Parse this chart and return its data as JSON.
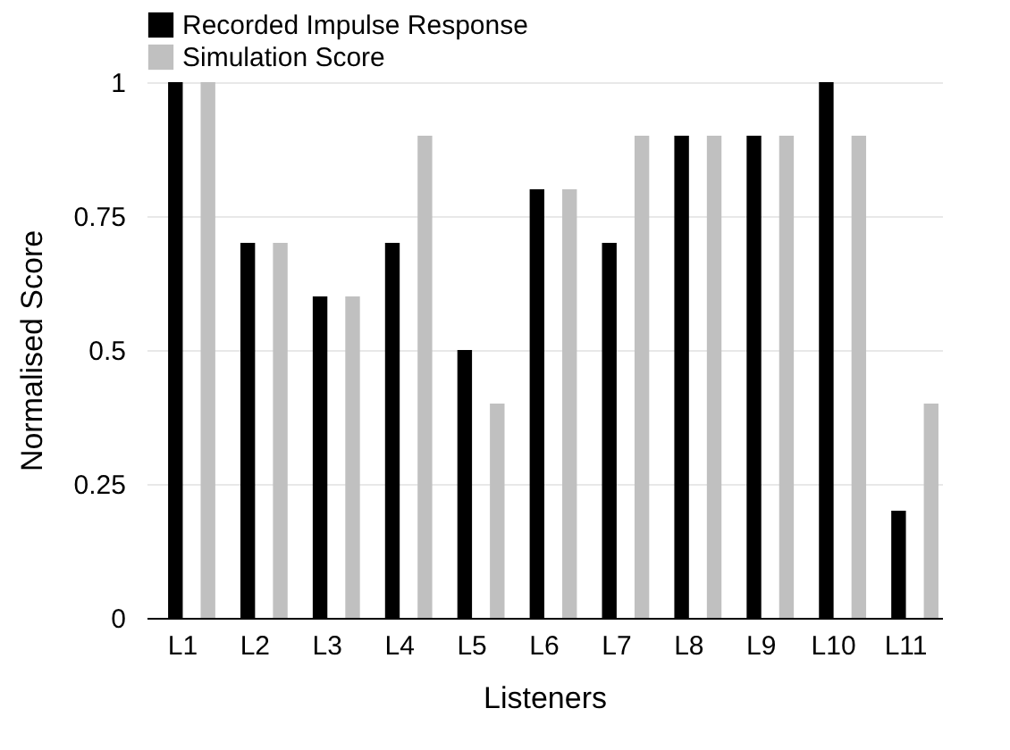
{
  "chart_data": {
    "type": "bar",
    "xlabel": "Listeners",
    "ylabel": "Normalised Score",
    "categories": [
      "L1",
      "L2",
      "L3",
      "L4",
      "L5",
      "L6",
      "L7",
      "L8",
      "L9",
      "L10",
      "L11"
    ],
    "series": [
      {
        "name": "Recorded Impulse Response",
        "color": "#000000",
        "values": [
          1,
          0.7,
          0.6,
          0.7,
          0.5,
          0.8,
          0.7,
          0.9,
          0.9,
          1,
          0.2
        ]
      },
      {
        "name": "Simulation Score",
        "color": "#c0c0c0",
        "values": [
          1,
          0.7,
          0.6,
          0.9,
          0.4,
          0.8,
          0.9,
          0.9,
          0.9,
          0.9,
          0.4
        ]
      }
    ],
    "ylim": [
      0,
      1
    ],
    "yticks": [
      0,
      0.25,
      0.5,
      0.75,
      1
    ],
    "grid": "y",
    "legend": "top"
  }
}
